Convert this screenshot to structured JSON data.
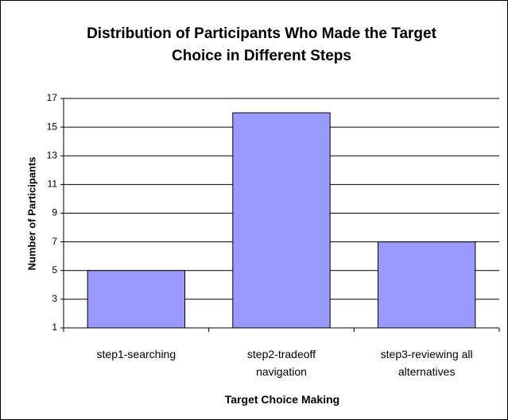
{
  "chart_data": {
    "type": "bar",
    "title": "Distribution of Participants Who Made the Target Choice in Different Steps",
    "x_label": "Target Choice Making",
    "y_label": "Number of Participants",
    "categories": [
      "step1-searching",
      "step2-tradeoff navigation",
      "step3-reviewing all alternatives"
    ],
    "values": [
      5,
      16,
      7
    ],
    "color": "#9999ff",
    "ylim": [
      1,
      17
    ],
    "yticks": [
      1,
      3,
      5,
      7,
      9,
      11,
      13,
      15,
      17
    ],
    "grid": true
  }
}
